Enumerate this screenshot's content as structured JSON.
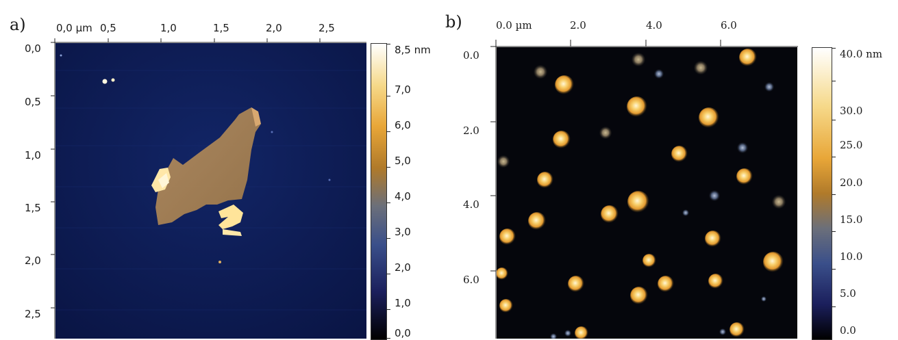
{
  "panel_a": {
    "letter": "a)",
    "x_ticks": [
      "0,0 µm",
      "0,5",
      "1,0",
      "1,5",
      "2,0",
      "2,5"
    ],
    "y_ticks": [
      "0,0",
      "0,5",
      "1,0",
      "1,5",
      "2,0",
      "2,5"
    ],
    "colorbar": {
      "labels": [
        "8,5 nm",
        "7,0",
        "6,0",
        "5,0",
        "4,0",
        "3,0",
        "2,0",
        "1,0",
        "0,0"
      ],
      "colors": [
        "#000000",
        "#1b1f5c",
        "#3a4f8a",
        "#6b6f7a",
        "#b07a2a",
        "#e8a638",
        "#f6d98a",
        "#ffffff"
      ]
    },
    "image_colors": {
      "background": "#0c1a4a",
      "flake": "#b08a50",
      "bright": "#ffe7a8"
    }
  },
  "panel_b": {
    "letter": "b)",
    "x_ticks": [
      "0.0 µm",
      "2.0",
      "4.0",
      "6.0"
    ],
    "y_ticks": [
      "0.0",
      "2.0",
      "4.0",
      "6.0"
    ],
    "colorbar": {
      "labels": [
        "40.0 nm",
        "30.0",
        "25.0",
        "20.0",
        "15.0",
        "10.0",
        "5.0",
        "0.0"
      ],
      "colors": [
        "#000000",
        "#1b1f5c",
        "#3a4f8a",
        "#6b6f7a",
        "#b07a2a",
        "#e8a638",
        "#f6d98a",
        "#ffffff"
      ]
    },
    "image_colors": {
      "background": "#05060d",
      "particle": "#f3b23a",
      "particle_core": "#fff3c8"
    }
  }
}
